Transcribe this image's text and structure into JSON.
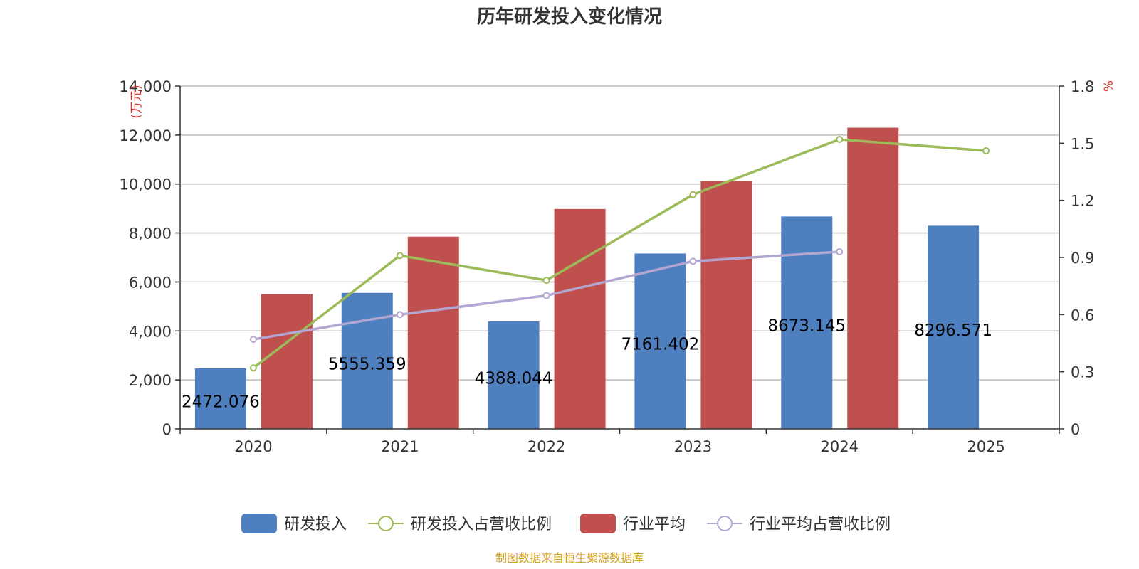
{
  "chart_data": {
    "type": "bar",
    "title": "历年研发投入变化情况",
    "categories": [
      "2020",
      "2021",
      "2022",
      "2023",
      "2024",
      "2025"
    ],
    "y_left": {
      "unit_label": "(万元)",
      "ylim": [
        0,
        14000
      ],
      "ticks": [
        "0",
        "2,000",
        "4,000",
        "6,000",
        "8,000",
        "10,000",
        "12,000",
        "14,000"
      ]
    },
    "y_right": {
      "unit_label": "%",
      "ylim": [
        0,
        1.8
      ],
      "ticks": [
        "0",
        "0.3",
        "0.6",
        "0.9",
        "1.2",
        "1.5",
        "1.8"
      ]
    },
    "series": [
      {
        "name": "研发投入",
        "kind": "bar",
        "axis": "left",
        "color": "#4e7fbf",
        "values": [
          2472.076,
          5555.359,
          4388.044,
          7161.402,
          8673.145,
          8296.571
        ],
        "labels": [
          "2472.076",
          "5555.359",
          "4388.044",
          "7161.402",
          "8673.145",
          "8296.571"
        ]
      },
      {
        "name": "研发投入占营收比例",
        "kind": "line",
        "axis": "right",
        "color": "#9bbb59",
        "values": [
          0.32,
          0.91,
          0.78,
          1.23,
          1.52,
          1.46
        ]
      },
      {
        "name": "行业平均",
        "kind": "bar",
        "axis": "left",
        "color": "#c0504d",
        "values": [
          5500,
          7850,
          8980,
          10120,
          12300,
          null
        ]
      },
      {
        "name": "行业平均占营收比例",
        "kind": "line",
        "axis": "right",
        "color": "#b3a6d0",
        "values": [
          0.47,
          0.6,
          0.7,
          0.88,
          0.93,
          null
        ]
      }
    ],
    "grid": true,
    "legend_position": "bottom"
  },
  "source_note": "制图数据来自恒生聚源数据库"
}
